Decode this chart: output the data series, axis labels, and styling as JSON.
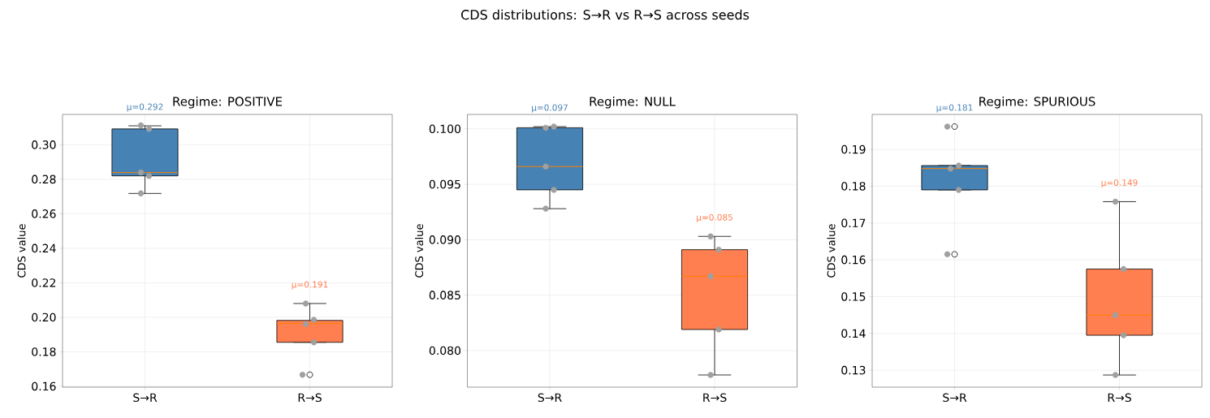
{
  "chart_data": [
    {
      "type": "other",
      "title": "CDS distributions: S→R vs R→S across seeds"
    },
    {
      "type": "box",
      "title": "Regime: POSITIVE",
      "ylabel": "CDS value",
      "categories": [
        "S→R",
        "R→S"
      ],
      "colors": [
        "#4682b4",
        "#ff7f50"
      ],
      "boxes": [
        {
          "low": 0.2718,
          "q1": 0.282,
          "median": 0.2839,
          "q3": 0.3092,
          "high": 0.311
        },
        {
          "low": 0.1855,
          "q1": 0.1855,
          "median": 0.1964,
          "q3": 0.1982,
          "high": 0.208,
          "outliers": [
            0.1667
          ]
        }
      ],
      "series": [
        {
          "type": "scatter",
          "color": "#a0a0a0",
          "marker": "circle",
          "x": [
            "S→R",
            "S→R",
            "S→R",
            "S→R",
            "S→R",
            "R→S",
            "R→S",
            "R→S",
            "R→S",
            "R→S"
          ],
          "values": [
            0.3113,
            0.3092,
            0.2839,
            0.282,
            0.2718,
            0.208,
            0.1985,
            0.1961,
            0.1855,
            0.1667
          ]
        }
      ],
      "ylim": [
        0.1595,
        0.3176
      ],
      "yticks": [
        {
          "value": 0.16,
          "label": "0.16"
        },
        {
          "value": 0.18,
          "label": "0.18"
        },
        {
          "value": 0.2,
          "label": "0.20"
        },
        {
          "value": 0.22,
          "label": "0.22"
        },
        {
          "value": 0.24,
          "label": "0.24"
        },
        {
          "value": 0.26,
          "label": "0.26"
        },
        {
          "value": 0.28,
          "label": "0.28"
        },
        {
          "value": 0.3,
          "label": "0.30"
        }
      ],
      "grid": true,
      "annotations": [
        "μ=0.292",
        "μ=0.191"
      ]
    },
    {
      "type": "box",
      "title": "Regime: NULL",
      "ylabel": "CDS value",
      "categories": [
        "S→R",
        "R→S"
      ],
      "colors": [
        "#4682b4",
        "#ff7f50"
      ],
      "boxes": [
        {
          "low": 0.0928,
          "q1": 0.0945,
          "median": 0.0966,
          "q3": 0.1001,
          "high": 0.1002
        },
        {
          "low": 0.0778,
          "q1": 0.0819,
          "median": 0.0867,
          "q3": 0.0891,
          "high": 0.0903
        }
      ],
      "series": [
        {
          "type": "scatter",
          "color": "#a0a0a0",
          "marker": "circle",
          "x": [
            "S→R",
            "S→R",
            "S→R",
            "S→R",
            "S→R",
            "R→S",
            "R→S",
            "R→S",
            "R→S",
            "R→S"
          ],
          "values": [
            0.1001,
            0.1002,
            0.0966,
            0.0945,
            0.0928,
            0.0903,
            0.0891,
            0.0867,
            0.0819,
            0.0778
          ]
        }
      ],
      "ylim": [
        0.0767,
        0.1013
      ],
      "yticks": [
        {
          "value": 0.08,
          "label": "0.080"
        },
        {
          "value": 0.085,
          "label": "0.085"
        },
        {
          "value": 0.09,
          "label": "0.090"
        },
        {
          "value": 0.095,
          "label": "0.095"
        },
        {
          "value": 0.1,
          "label": "0.100"
        }
      ],
      "grid": true,
      "annotations": [
        "μ=0.097",
        "μ=0.085"
      ]
    },
    {
      "type": "box",
      "title": "Regime: SPURIOUS",
      "ylabel": "CDS value",
      "categories": [
        "S→R",
        "R→S"
      ],
      "colors": [
        "#4682b4",
        "#ff7f50"
      ],
      "boxes": [
        {
          "low": 0.179,
          "q1": 0.179,
          "median": 0.1848,
          "q3": 0.1856,
          "high": 0.1856,
          "outliers": [
            0.1962,
            0.1615
          ]
        },
        {
          "low": 0.1287,
          "q1": 0.1395,
          "median": 0.145,
          "q3": 0.1575,
          "high": 0.1758
        }
      ],
      "series": [
        {
          "type": "scatter",
          "color": "#a0a0a0",
          "marker": "circle",
          "x": [
            "S→R",
            "S→R",
            "S→R",
            "S→R",
            "S→R",
            "R→S",
            "R→S",
            "R→S",
            "R→S",
            "R→S"
          ],
          "values": [
            0.1962,
            0.1856,
            0.1848,
            0.179,
            0.1615,
            0.1758,
            0.1575,
            0.145,
            0.1395,
            0.1287
          ]
        }
      ],
      "ylim": [
        0.1254,
        0.1995
      ],
      "yticks": [
        0.13,
        0.14,
        0.15,
        0.16,
        0.17,
        0.18,
        0.19
      ],
      "grid": true,
      "annotations": [
        "μ=0.181",
        "μ=0.149"
      ]
    }
  ]
}
